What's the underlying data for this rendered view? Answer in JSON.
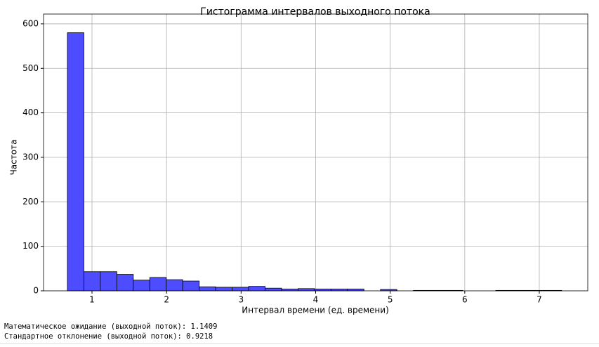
{
  "chart_data": {
    "type": "histogram",
    "title": "Гистограмма интервалов выходного потока",
    "xlabel": "Интервал времени (ед. времени)",
    "ylabel": "Частота",
    "bins": [
      0.67,
      0.891,
      1.112,
      1.333,
      1.554,
      1.775,
      1.996,
      2.217,
      2.438,
      2.659,
      2.88,
      3.101,
      3.322,
      3.543,
      3.764,
      3.985,
      4.206,
      4.427,
      4.648,
      4.869,
      5.09,
      5.311,
      5.532,
      5.753,
      5.974,
      6.195,
      6.416,
      6.637,
      6.858,
      7.079,
      7.3
    ],
    "counts": [
      580,
      43,
      43,
      37,
      24,
      30,
      25,
      22,
      9,
      8,
      8,
      10,
      6,
      4,
      5,
      4,
      4,
      4,
      0,
      3,
      0,
      1,
      1,
      1,
      0,
      0,
      1,
      1,
      1,
      1
    ],
    "color": "#4d4dff",
    "edgecolor": "#000000",
    "xlim": [
      0.35,
      7.65
    ],
    "xticks": [
      1,
      2,
      3,
      4,
      5,
      6,
      7
    ],
    "ylim": [
      0,
      622
    ],
    "yticks": [
      0,
      100,
      200,
      300,
      400,
      500,
      600
    ],
    "grid": true
  },
  "output": [
    "Математическое ожидание (выходной поток): 1.1409",
    "Стандартное отклонение (выходной поток): 0.9218"
  ]
}
